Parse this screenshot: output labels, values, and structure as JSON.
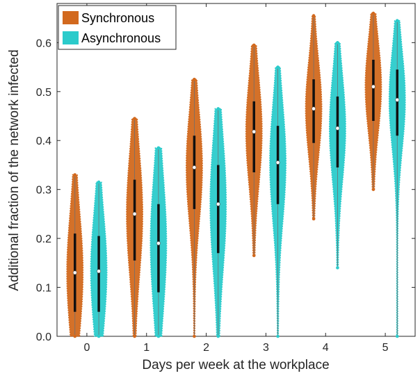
{
  "chart_data": {
    "type": "violin",
    "xlabel": "Days per week at the workplace",
    "ylabel": "Additional fraction of the network infected",
    "x": [
      0,
      1,
      2,
      3,
      4,
      5
    ],
    "x_ticks": [
      "0",
      "1",
      "2",
      "3",
      "4",
      "5"
    ],
    "y_ticks": [
      "0.0",
      "0.1",
      "0.2",
      "0.3",
      "0.4",
      "0.5",
      "0.6"
    ],
    "xlim": [
      -0.5,
      5.5
    ],
    "ylim": [
      0,
      0.68
    ],
    "grid": false,
    "legend_position": "top-left",
    "series": [
      {
        "name": "Synchronous",
        "color": "#D2691E",
        "median": [
          0.13,
          0.25,
          0.345,
          0.418,
          0.465,
          0.51
        ],
        "q1": [
          0.05,
          0.155,
          0.26,
          0.335,
          0.395,
          0.44
        ],
        "q3": [
          0.21,
          0.32,
          0.41,
          0.48,
          0.525,
          0.565
        ],
        "min": [
          0.0,
          0.0,
          0.0,
          0.165,
          0.24,
          0.3
        ],
        "max": [
          0.33,
          0.445,
          0.525,
          0.595,
          0.655,
          0.66
        ]
      },
      {
        "name": "Asynchronous",
        "color": "#2BCBCB",
        "median": [
          0.133,
          0.19,
          0.27,
          0.355,
          0.425,
          0.483
        ],
        "q1": [
          0.05,
          0.09,
          0.17,
          0.27,
          0.345,
          0.41
        ],
        "q3": [
          0.205,
          0.27,
          0.35,
          0.43,
          0.49,
          0.545
        ],
        "min": [
          0.0,
          0.0,
          0.0,
          0.0,
          0.14,
          0.0
        ],
        "max": [
          0.315,
          0.385,
          0.465,
          0.55,
          0.6,
          0.645
        ]
      }
    ]
  }
}
